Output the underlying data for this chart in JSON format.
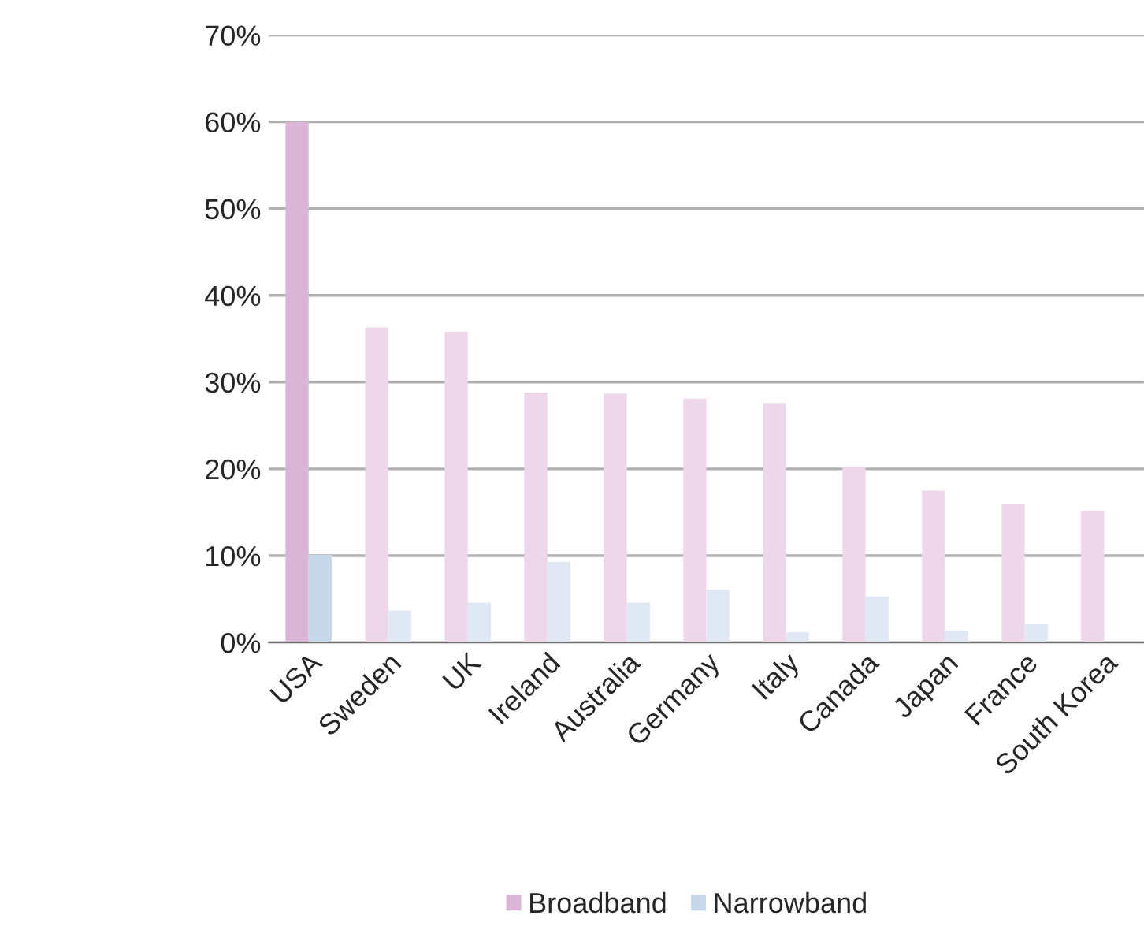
{
  "chart_data": {
    "type": "bar",
    "categories": [
      "USA",
      "Sweden",
      "UK",
      "Ireland",
      "Australia",
      "Germany",
      "Italy",
      "Canada",
      "Japan",
      "France",
      "South Korea"
    ],
    "series": [
      {
        "name": "Broadband",
        "color": "#dbb5d6",
        "colors": [
          "#dbb5d6",
          "#eed6eb",
          "#eed6eb",
          "#eed6eb",
          "#eed6eb",
          "#eed6eb",
          "#eed6eb",
          "#eed6eb",
          "#eed6eb",
          "#eed6eb",
          "#eed6eb"
        ],
        "values": [
          60,
          36.3,
          35.8,
          28.8,
          28.7,
          28.1,
          27.6,
          20.3,
          17.5,
          15.9,
          15.2
        ]
      },
      {
        "name": "Narrowband",
        "color": "#c7d8ea",
        "colors": [
          "#c7d8ea",
          "#dfe8f4",
          "#dfe8f4",
          "#dfe8f4",
          "#dfe8f4",
          "#dfe8f4",
          "#dfe8f4",
          "#dfe8f4",
          "#dfe8f4",
          "#dfe8f4",
          "#dfe8f4"
        ],
        "values": [
          10.1,
          3.7,
          4.6,
          9.3,
          4.6,
          6.1,
          1.2,
          5.3,
          1.4,
          2.1,
          0
        ]
      }
    ],
    "ylim": [
      0,
      70
    ],
    "yticks": [
      {
        "value": 0,
        "label": "0%"
      },
      {
        "value": 10,
        "label": "10%"
      },
      {
        "value": 20,
        "label": "20%"
      },
      {
        "value": 30,
        "label": "30%"
      },
      {
        "value": 40,
        "label": "40%"
      },
      {
        "value": 50,
        "label": "50%"
      },
      {
        "value": 60,
        "label": "60%"
      },
      {
        "value": 70,
        "label": "70%"
      }
    ],
    "grid": "y",
    "legend": "bottom"
  }
}
